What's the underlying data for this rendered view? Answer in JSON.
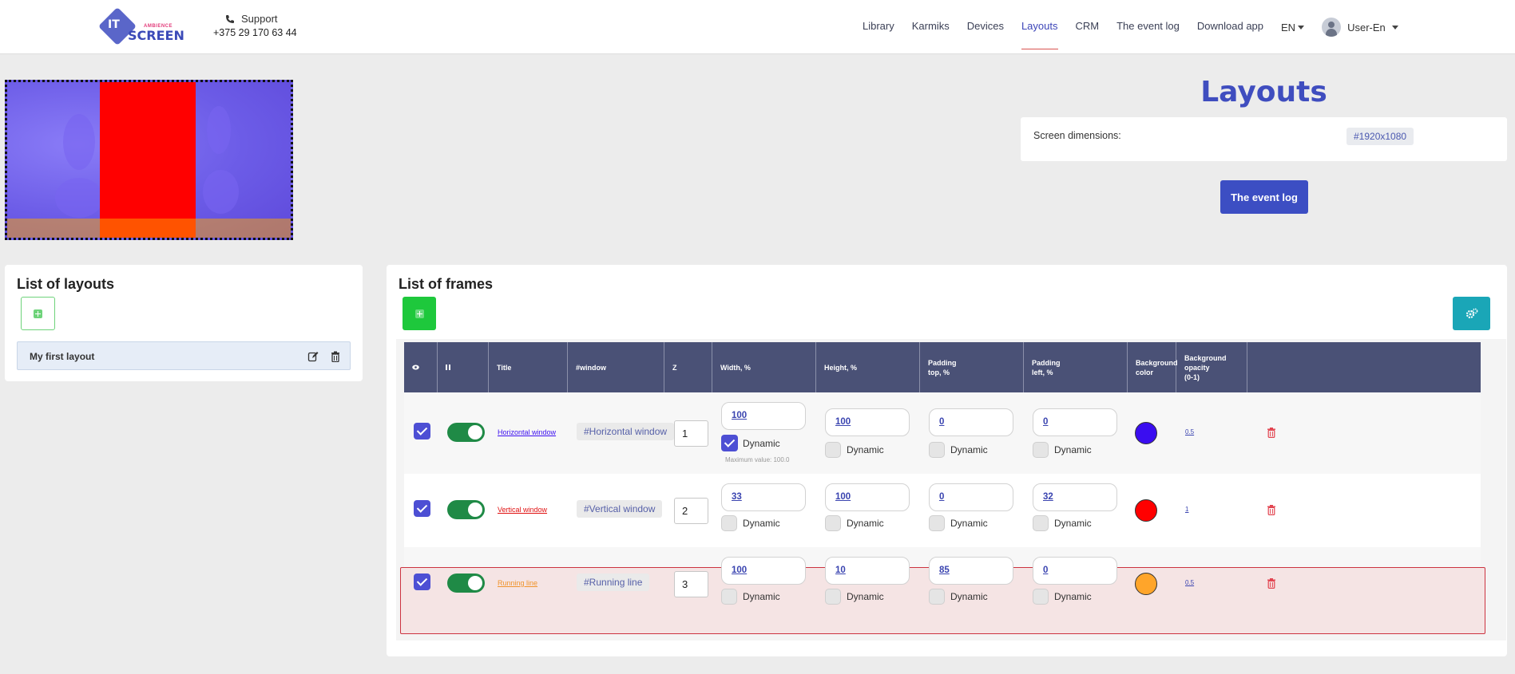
{
  "header": {
    "brand": {
      "it": "IT",
      "ambience": "AMBIENCE",
      "screen": "SCREEN"
    },
    "support_label": "Support",
    "support_phone": "+375 29 170 63 44",
    "nav": [
      "Library",
      "Karmiks",
      "Devices",
      "Layouts",
      "CRM",
      "The event log",
      "Download app"
    ],
    "active_nav": "Layouts",
    "language": "EN",
    "user": "User-En"
  },
  "page": {
    "title": "Layouts",
    "screen_dimensions_label": "Screen dimensions:",
    "screen_dimensions_value": "#1920x1080",
    "event_log_button": "The event log"
  },
  "layouts": {
    "title": "List of layouts",
    "items": [
      "My first layout"
    ]
  },
  "frames": {
    "title": "List of frames",
    "columns": [
      "",
      "",
      "Title",
      "#window",
      "Z",
      "Width, %",
      "Height, %",
      "Padding top, %",
      "Padding left, %",
      "Background color",
      "Background opacity (0-1)",
      ""
    ],
    "dynamic_label": "Dynamic",
    "rows": [
      {
        "title": "Horizontal window",
        "window": "#Horizontal window",
        "z": "1",
        "width": "100",
        "height": "100",
        "padding_top": "0",
        "padding_left": "0",
        "width_dynamic": true,
        "hint": "Maximum value: 100.0",
        "color": "#3a0df0",
        "opacity": "0.5",
        "title_color": "#3a0df0"
      },
      {
        "title": "Vertical window",
        "window": "#Vertical window",
        "z": "2",
        "width": "33",
        "height": "100",
        "padding_top": "0",
        "padding_left": "32",
        "width_dynamic": false,
        "hint": "",
        "color": "#ff0000",
        "opacity": "1",
        "title_color": "#e01010"
      },
      {
        "title": "Running line",
        "window": "#Running line",
        "z": "3",
        "width": "100",
        "height": "10",
        "padding_top": "85",
        "padding_left": "0",
        "width_dynamic": false,
        "hint": "",
        "color": "#ffa52a",
        "opacity": "0.5",
        "title_color": "#f0932b"
      }
    ]
  },
  "colors": {
    "accent": "#3c4ec3",
    "header_bg": "#4a5176",
    "add_green": "#1ec83c",
    "settings_teal": "#1aa6b7",
    "highlight_border": "#cc3340"
  }
}
